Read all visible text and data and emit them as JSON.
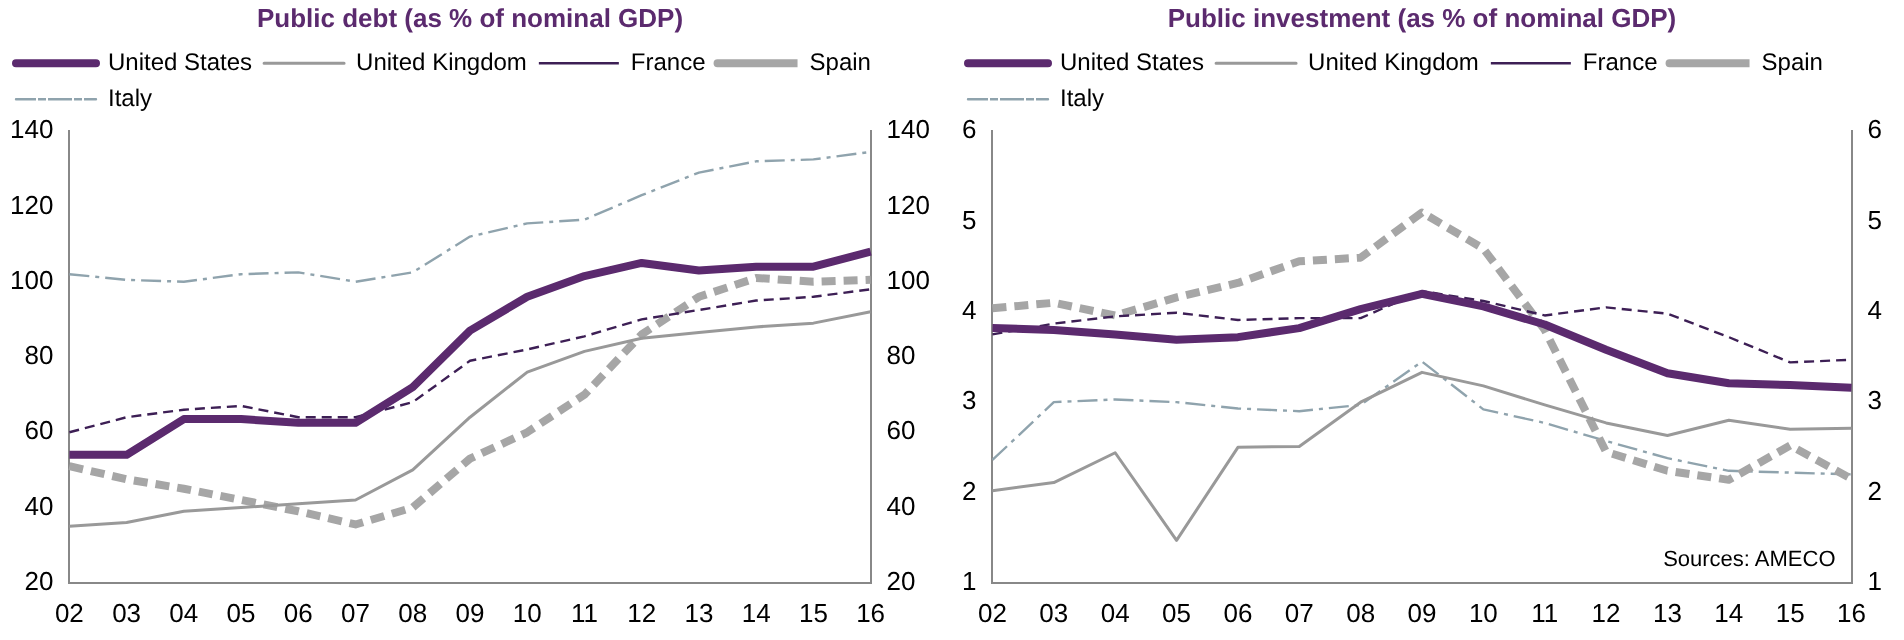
{
  "chart_data": [
    {
      "type": "line",
      "title": "Public debt (as % of nominal GDP)",
      "categories": [
        "02",
        "03",
        "04",
        "05",
        "06",
        "07",
        "08",
        "09",
        "10",
        "11",
        "12",
        "13",
        "14",
        "15",
        "16"
      ],
      "series": [
        {
          "name": "United States",
          "color": "#5b2a6e",
          "line_style": "solid",
          "values": [
            54,
            54,
            63.5,
            63.5,
            62.5,
            62.5,
            72,
            87,
            96,
            101.5,
            105,
            103,
            104,
            104,
            108
          ]
        },
        {
          "name": "United Kingdom",
          "color": "#999999",
          "line_style": "solid",
          "values": [
            35,
            36,
            39,
            40,
            41,
            42,
            50,
            64,
            76,
            81.5,
            85,
            86.5,
            88,
            89,
            92
          ]
        },
        {
          "name": "France",
          "color": "#3d1f55",
          "line_style": "dashed",
          "values": [
            60,
            64,
            66,
            67,
            64,
            64,
            68,
            79,
            82,
            85.5,
            90,
            92.5,
            95,
            96,
            98
          ]
        },
        {
          "name": "Spain",
          "color": "#a6a6a6",
          "line_style": "dashed",
          "values": [
            51,
            47.5,
            45,
            42,
            39,
            35.5,
            40,
            53,
            60,
            70,
            86,
            96,
            101,
            100,
            100.5
          ]
        },
        {
          "name": "Italy",
          "color": "#8fa3ad",
          "line_style": "dashed",
          "values": [
            102,
            100.5,
            100,
            102,
            102.5,
            100,
            102.5,
            112,
            115.5,
            116.5,
            123,
            129,
            132,
            132.5,
            134.5
          ]
        }
      ],
      "ylim": [
        20,
        140
      ],
      "yticks": [
        20,
        40,
        60,
        80,
        100,
        120,
        140
      ],
      "y2lim": [
        20,
        140
      ],
      "y2ticks": [
        20,
        40,
        60,
        80,
        100,
        120,
        140
      ],
      "grid": false,
      "legend": "top",
      "marker": "none"
    },
    {
      "type": "line",
      "title": "Public investment (as % of nominal GDP)",
      "categories": [
        "02",
        "03",
        "04",
        "05",
        "06",
        "07",
        "08",
        "09",
        "10",
        "11",
        "12",
        "13",
        "14",
        "15",
        "16"
      ],
      "series": [
        {
          "name": "United States",
          "color": "#5b2a6e",
          "line_style": "solid",
          "values": [
            3.82,
            3.8,
            3.75,
            3.69,
            3.72,
            3.82,
            4.03,
            4.2,
            4.06,
            3.86,
            3.58,
            3.32,
            3.21,
            3.19,
            3.16
          ]
        },
        {
          "name": "United Kingdom",
          "color": "#999999",
          "line_style": "solid",
          "values": [
            2.02,
            2.11,
            2.44,
            1.47,
            2.5,
            2.51,
            3.0,
            3.33,
            3.18,
            2.97,
            2.77,
            2.63,
            2.8,
            2.7,
            2.71
          ]
        },
        {
          "name": "France",
          "color": "#3d1f55",
          "line_style": "dashed",
          "values": [
            3.75,
            3.87,
            3.95,
            3.99,
            3.91,
            3.93,
            3.93,
            4.23,
            4.12,
            3.96,
            4.05,
            3.98,
            3.72,
            3.44,
            3.47
          ]
        },
        {
          "name": "Spain",
          "color": "#a6a6a6",
          "line_style": "dashed",
          "values": [
            4.04,
            4.1,
            3.96,
            4.16,
            4.32,
            4.56,
            4.6,
            5.1,
            4.7,
            3.8,
            2.45,
            2.24,
            2.14,
            2.52,
            2.15
          ]
        },
        {
          "name": "Italy",
          "color": "#8fa3ad",
          "line_style": "dashed",
          "values": [
            2.36,
            3.0,
            3.03,
            3.0,
            2.93,
            2.9,
            2.97,
            3.45,
            2.92,
            2.77,
            2.57,
            2.38,
            2.24,
            2.22,
            2.2
          ]
        }
      ],
      "ylim": [
        1,
        6
      ],
      "yticks": [
        1,
        2,
        3,
        4,
        5,
        6
      ],
      "y2lim": [
        1,
        6
      ],
      "y2ticks": [
        1,
        2,
        3,
        4,
        5,
        6
      ],
      "grid": false,
      "legend": "top",
      "marker": "none",
      "annotations": [
        "Sources: AMECO"
      ]
    }
  ]
}
